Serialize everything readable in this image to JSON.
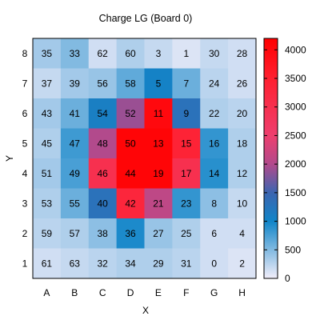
{
  "chart_data": {
    "type": "heatmap",
    "title": "Charge LG (Board 0)",
    "xlabel": "X",
    "ylabel": "Y",
    "x_categories": [
      "A",
      "B",
      "C",
      "D",
      "E",
      "F",
      "G",
      "H"
    ],
    "y_categories": [
      "1",
      "2",
      "3",
      "4",
      "5",
      "6",
      "7",
      "8"
    ],
    "rows": [
      {
        "y": "8",
        "cells": [
          {
            "label": "35",
            "value": 350
          },
          {
            "label": "33",
            "value": 500
          },
          {
            "label": "62",
            "value": 150
          },
          {
            "label": "60",
            "value": 300
          },
          {
            "label": "3",
            "value": 200
          },
          {
            "label": "1",
            "value": 100
          },
          {
            "label": "30",
            "value": 200
          },
          {
            "label": "28",
            "value": 150
          }
        ]
      },
      {
        "y": "7",
        "cells": [
          {
            "label": "37",
            "value": 200
          },
          {
            "label": "39",
            "value": 350
          },
          {
            "label": "56",
            "value": 400
          },
          {
            "label": "58",
            "value": 650
          },
          {
            "label": "5",
            "value": 1050
          },
          {
            "label": "7",
            "value": 600
          },
          {
            "label": "24",
            "value": 250
          },
          {
            "label": "26",
            "value": 150
          }
        ]
      },
      {
        "y": "6",
        "cells": [
          {
            "label": "43",
            "value": 350
          },
          {
            "label": "41",
            "value": 600
          },
          {
            "label": "54",
            "value": 1100
          },
          {
            "label": "52",
            "value": 1900
          },
          {
            "label": "11",
            "value": 4000
          },
          {
            "label": "9",
            "value": 1300
          },
          {
            "label": "22",
            "value": 300
          },
          {
            "label": "20",
            "value": 250
          }
        ]
      },
      {
        "y": "5",
        "cells": [
          {
            "label": "45",
            "value": 300
          },
          {
            "label": "47",
            "value": 800
          },
          {
            "label": "48",
            "value": 2000
          },
          {
            "label": "50",
            "value": 4100
          },
          {
            "label": "13",
            "value": 4100
          },
          {
            "label": "15",
            "value": 3400
          },
          {
            "label": "16",
            "value": 850
          },
          {
            "label": "18",
            "value": 300
          }
        ]
      },
      {
        "y": "4",
        "cells": [
          {
            "label": "51",
            "value": 350
          },
          {
            "label": "49",
            "value": 750
          },
          {
            "label": "46",
            "value": 3000
          },
          {
            "label": "44",
            "value": 4100
          },
          {
            "label": "19",
            "value": 4100
          },
          {
            "label": "17",
            "value": 3000
          },
          {
            "label": "14",
            "value": 900
          },
          {
            "label": "12",
            "value": 300
          }
        ]
      },
      {
        "y": "3",
        "cells": [
          {
            "label": "53",
            "value": 300
          },
          {
            "label": "55",
            "value": 600
          },
          {
            "label": "40",
            "value": 1300
          },
          {
            "label": "42",
            "value": 3300
          },
          {
            "label": "21",
            "value": 2100
          },
          {
            "label": "23",
            "value": 850
          },
          {
            "label": "8",
            "value": 450
          },
          {
            "label": "10",
            "value": 200
          }
        ]
      },
      {
        "y": "2",
        "cells": [
          {
            "label": "59",
            "value": 250
          },
          {
            "label": "57",
            "value": 300
          },
          {
            "label": "38",
            "value": 450
          },
          {
            "label": "36",
            "value": 950
          },
          {
            "label": "27",
            "value": 400
          },
          {
            "label": "25",
            "value": 300
          },
          {
            "label": "6",
            "value": 150
          },
          {
            "label": "4",
            "value": 150
          }
        ]
      },
      {
        "y": "1",
        "cells": [
          {
            "label": "61",
            "value": 150
          },
          {
            "label": "63",
            "value": 200
          },
          {
            "label": "32",
            "value": 250
          },
          {
            "label": "34",
            "value": 300
          },
          {
            "label": "29",
            "value": 300
          },
          {
            "label": "31",
            "value": 250
          },
          {
            "label": "0",
            "value": 150
          },
          {
            "label": "2",
            "value": 100
          }
        ]
      }
    ],
    "colorbar": {
      "min": 0,
      "max": 4200,
      "ticks": [
        "0",
        "500",
        "1000",
        "1500",
        "2000",
        "2500",
        "3000",
        "3500",
        "4000"
      ],
      "tick_values": [
        0,
        500,
        1000,
        1500,
        2000,
        2500,
        3000,
        3500,
        4000
      ],
      "palette": [
        {
          "value": 0,
          "color": "#f2eefa"
        },
        {
          "value": 1000,
          "color": "#1185c8"
        },
        {
          "value": 1500,
          "color": "#3c65b0"
        },
        {
          "value": 2000,
          "color": "#b24a8c"
        },
        {
          "value": 2500,
          "color": "#ee3f6e"
        },
        {
          "value": 3500,
          "color": "#ff2030"
        },
        {
          "value": 4200,
          "color": "#ff0000"
        }
      ]
    }
  }
}
